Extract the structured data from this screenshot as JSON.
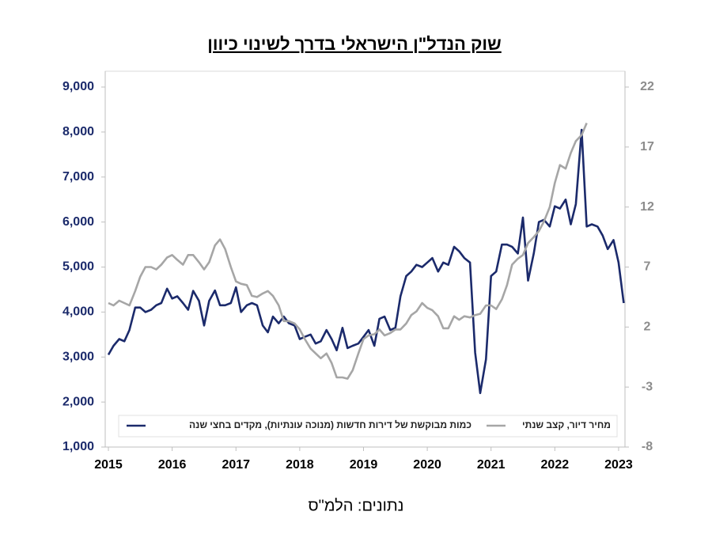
{
  "chart_data": {
    "type": "line",
    "title": "שוק הנדל\"ן הישראלי בדרך לשינוי כיוון",
    "source": "נתונים: הלמ\"ס",
    "xlim": [
      2014.95,
      2023.1
    ],
    "xticks": [
      2015,
      2016,
      2017,
      2018,
      2019,
      2020,
      2021,
      2022,
      2023
    ],
    "ylim": [
      1000,
      9000
    ],
    "yticks": [
      {
        "value": 1000,
        "label": "1,000"
      },
      {
        "value": 2000,
        "label": "2,000"
      },
      {
        "value": 3000,
        "label": "3,000"
      },
      {
        "value": 4000,
        "label": "4,000"
      },
      {
        "value": 5000,
        "label": "5,000"
      },
      {
        "value": 6000,
        "label": "6,000"
      },
      {
        "value": 7000,
        "label": "7,000"
      },
      {
        "value": 8000,
        "label": "8,000"
      },
      {
        "value": 9000,
        "label": "9,000"
      }
    ],
    "y2lim": [
      -8,
      22
    ],
    "y2ticks": [
      -8,
      -3,
      2,
      7,
      12,
      17,
      22
    ],
    "legend": "bottom",
    "series": [
      {
        "name": "כמות מבוקשת של דירות חדשות (מנוכה עונתיות), מקדים בחצי שנה",
        "color": "#1b2a6b",
        "x": [
          2015.0,
          2015.08,
          2015.17,
          2015.25,
          2015.33,
          2015.42,
          2015.5,
          2015.58,
          2015.67,
          2015.75,
          2015.83,
          2015.92,
          2016.0,
          2016.08,
          2016.17,
          2016.25,
          2016.33,
          2016.42,
          2016.5,
          2016.58,
          2016.67,
          2016.75,
          2016.83,
          2016.92,
          2017.0,
          2017.08,
          2017.17,
          2017.25,
          2017.33,
          2017.42,
          2017.5,
          2017.58,
          2017.67,
          2017.75,
          2017.83,
          2017.92,
          2018.0,
          2018.08,
          2018.17,
          2018.25,
          2018.33,
          2018.42,
          2018.5,
          2018.58,
          2018.67,
          2018.75,
          2018.83,
          2018.92,
          2019.0,
          2019.08,
          2019.17,
          2019.25,
          2019.33,
          2019.42,
          2019.5,
          2019.58,
          2019.67,
          2019.75,
          2019.83,
          2019.92,
          2020.0,
          2020.08,
          2020.17,
          2020.25,
          2020.33,
          2020.42,
          2020.5,
          2020.58,
          2020.67,
          2020.75,
          2020.83,
          2020.92,
          2021.0,
          2021.08,
          2021.17,
          2021.25,
          2021.33,
          2021.42,
          2021.5,
          2021.58,
          2021.67,
          2021.75,
          2021.83,
          2021.92,
          2022.0,
          2022.08,
          2022.17,
          2022.25,
          2022.33,
          2022.42,
          2022.5,
          2022.58,
          2022.67,
          2022.75,
          2022.83,
          2022.92,
          2023.0,
          2023.08
        ],
        "values": [
          3050,
          3250,
          3400,
          3350,
          3600,
          4100,
          4100,
          4000,
          4050,
          4150,
          4200,
          4520,
          4300,
          4350,
          4200,
          4050,
          4470,
          4250,
          3700,
          4250,
          4480,
          4150,
          4150,
          4200,
          4550,
          4000,
          4150,
          4200,
          4150,
          3700,
          3550,
          3900,
          3750,
          3900,
          3750,
          3700,
          3400,
          3450,
          3500,
          3300,
          3350,
          3600,
          3400,
          3150,
          3650,
          3200,
          3250,
          3300,
          3450,
          3600,
          3250,
          3850,
          3900,
          3600,
          3650,
          4350,
          4800,
          4900,
          5050,
          5000,
          5100,
          5200,
          4900,
          5100,
          5050,
          5450,
          5350,
          5200,
          5100,
          3100,
          2200,
          2950,
          4800,
          4900,
          5500,
          5500,
          5450,
          5300,
          6100,
          4700,
          5300,
          6000,
          6050,
          5900,
          6350,
          6300,
          6500,
          5950,
          6400,
          8050,
          5900,
          5950,
          5900,
          5700,
          5400,
          5600,
          5100,
          4200
        ]
      },
      {
        "name": "מחיר דיור, קצב שנתי",
        "color": "#a6a6a6",
        "axis": "y2",
        "x": [
          2015.0,
          2015.08,
          2015.17,
          2015.25,
          2015.33,
          2015.42,
          2015.5,
          2015.58,
          2015.67,
          2015.75,
          2015.83,
          2015.92,
          2016.0,
          2016.08,
          2016.17,
          2016.25,
          2016.33,
          2016.42,
          2016.5,
          2016.58,
          2016.67,
          2016.75,
          2016.83,
          2016.92,
          2017.0,
          2017.08,
          2017.17,
          2017.25,
          2017.33,
          2017.42,
          2017.5,
          2017.58,
          2017.67,
          2017.75,
          2017.83,
          2017.92,
          2018.0,
          2018.08,
          2018.17,
          2018.25,
          2018.33,
          2018.42,
          2018.5,
          2018.58,
          2018.67,
          2018.75,
          2018.83,
          2018.92,
          2019.0,
          2019.08,
          2019.17,
          2019.25,
          2019.33,
          2019.42,
          2019.5,
          2019.58,
          2019.67,
          2019.75,
          2019.83,
          2019.92,
          2020.0,
          2020.08,
          2020.17,
          2020.25,
          2020.33,
          2020.42,
          2020.5,
          2020.58,
          2020.67,
          2020.75,
          2020.83,
          2020.92,
          2021.0,
          2021.08,
          2021.17,
          2021.25,
          2021.33,
          2021.42,
          2021.5,
          2021.58,
          2021.67,
          2021.75,
          2021.83,
          2021.92,
          2022.0,
          2022.08,
          2022.17,
          2022.25,
          2022.33,
          2022.42,
          2022.5
        ],
        "values": [
          4,
          3.8,
          4.2,
          4,
          3.8,
          5,
          6.2,
          7,
          7,
          6.8,
          7.2,
          7.8,
          8,
          7.6,
          7.2,
          8,
          8,
          7.4,
          6.8,
          7.4,
          8.8,
          9.3,
          8.5,
          7,
          5.8,
          5.6,
          5.5,
          4.6,
          4.5,
          4.8,
          5,
          4.6,
          3.8,
          2.5,
          2.5,
          2.3,
          1.8,
          1,
          0.2,
          -0.2,
          -0.6,
          -0.2,
          -1,
          -2.2,
          -2.2,
          -2.3,
          -1.6,
          -0.2,
          1,
          1.3,
          1.4,
          1.8,
          1.3,
          1.5,
          1.8,
          1.8,
          2.3,
          3,
          3.3,
          4,
          3.6,
          3.4,
          2.9,
          1.9,
          1.9,
          2.9,
          2.6,
          2.9,
          2.8,
          3,
          3.1,
          3.8,
          3.8,
          3.5,
          4.3,
          5.5,
          7.2,
          7.7,
          8,
          9,
          9.5,
          10,
          10.8,
          12,
          14,
          15.5,
          15.2,
          16.5,
          17.5,
          18,
          19
        ]
      }
    ]
  }
}
